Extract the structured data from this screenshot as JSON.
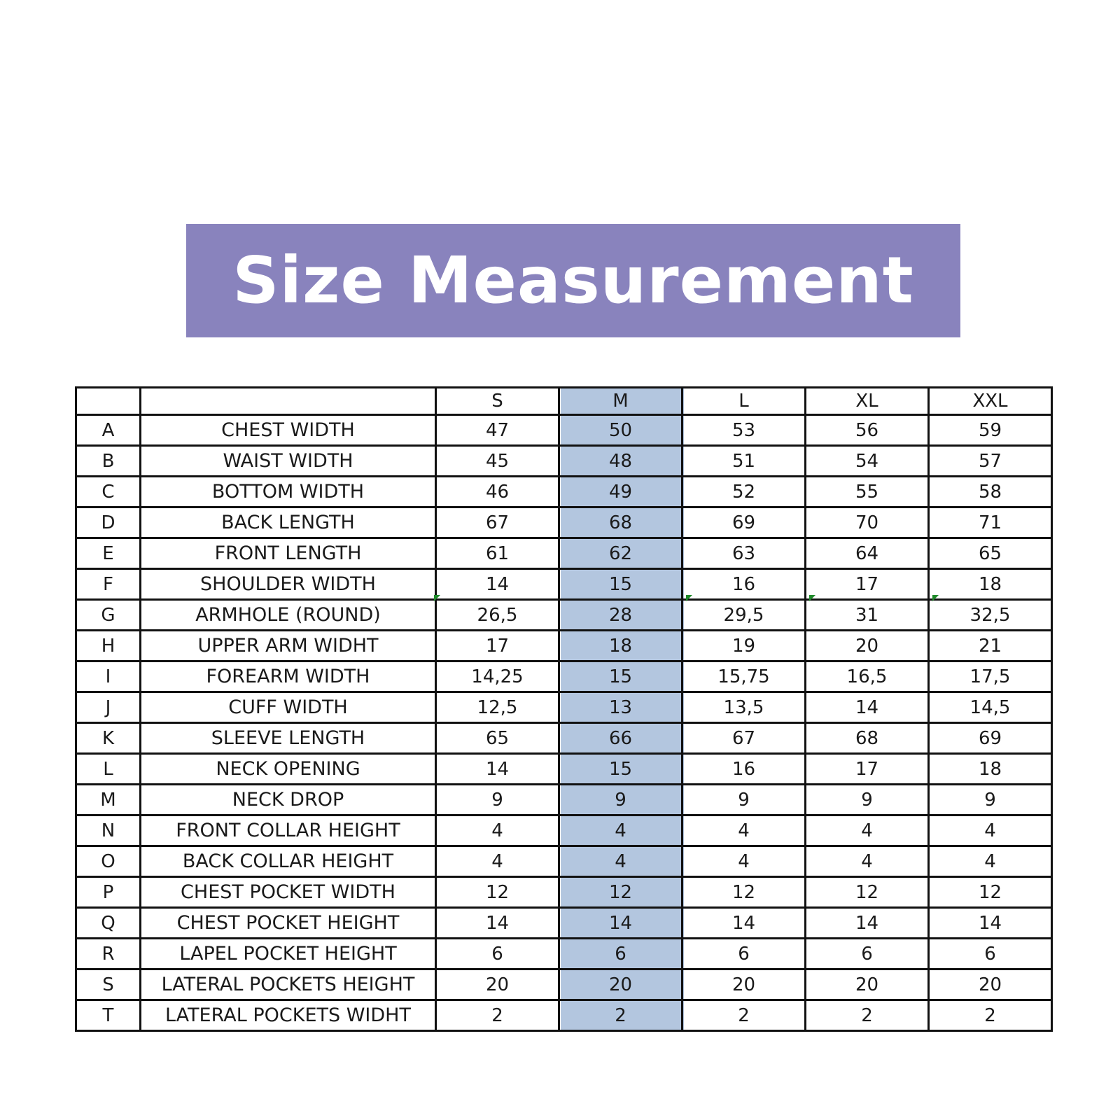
{
  "title": "Size Measurement",
  "colors": {
    "banner_background": "#8983bd",
    "banner_text": "#ffffff",
    "highlight_column": "#b3c6df",
    "comment_marker": "#1f8a2a"
  },
  "highlighted_size": "M",
  "table": {
    "sizes": [
      "S",
      "M",
      "L",
      "XL",
      "XXL"
    ],
    "rows": [
      {
        "code": "A",
        "name": "CHEST WIDTH",
        "values": [
          "47",
          "50",
          "53",
          "56",
          "59"
        ]
      },
      {
        "code": "B",
        "name": "WAIST WIDTH",
        "values": [
          "45",
          "48",
          "51",
          "54",
          "57"
        ]
      },
      {
        "code": "C",
        "name": "BOTTOM WIDTH",
        "values": [
          "46",
          "49",
          "52",
          "55",
          "58"
        ]
      },
      {
        "code": "D",
        "name": "BACK LENGTH",
        "values": [
          "67",
          "68",
          "69",
          "70",
          "71"
        ]
      },
      {
        "code": "E",
        "name": "FRONT LENGTH",
        "values": [
          "61",
          "62",
          "63",
          "64",
          "65"
        ]
      },
      {
        "code": "F",
        "name": "SHOULDER WIDTH",
        "values": [
          "14",
          "15",
          "16",
          "17",
          "18"
        ]
      },
      {
        "code": "G",
        "name": "ARMHOLE (ROUND)",
        "values": [
          "26,5",
          "28",
          "29,5",
          "31",
          "32,5"
        ]
      },
      {
        "code": "H",
        "name": "UPPER ARM WIDHT",
        "values": [
          "17",
          "18",
          "19",
          "20",
          "21"
        ]
      },
      {
        "code": "I",
        "name": "FOREARM WIDTH",
        "values": [
          "14,25",
          "15",
          "15,75",
          "16,5",
          "17,5"
        ]
      },
      {
        "code": "J",
        "name": "CUFF WIDTH",
        "values": [
          "12,5",
          "13",
          "13,5",
          "14",
          "14,5"
        ]
      },
      {
        "code": "K",
        "name": "SLEEVE LENGTH",
        "values": [
          "65",
          "66",
          "67",
          "68",
          "69"
        ]
      },
      {
        "code": "L",
        "name": "NECK OPENING",
        "values": [
          "14",
          "15",
          "16",
          "17",
          "18"
        ]
      },
      {
        "code": "M",
        "name": "NECK DROP",
        "values": [
          "9",
          "9",
          "9",
          "9",
          "9"
        ]
      },
      {
        "code": "N",
        "name": "FRONT COLLAR HEIGHT",
        "values": [
          "4",
          "4",
          "4",
          "4",
          "4"
        ]
      },
      {
        "code": "O",
        "name": "BACK COLLAR HEIGHT",
        "values": [
          "4",
          "4",
          "4",
          "4",
          "4"
        ]
      },
      {
        "code": "P",
        "name": "CHEST POCKET WIDTH",
        "values": [
          "12",
          "12",
          "12",
          "12",
          "12"
        ]
      },
      {
        "code": "Q",
        "name": "CHEST POCKET HEIGHT",
        "values": [
          "14",
          "14",
          "14",
          "14",
          "14"
        ]
      },
      {
        "code": "R",
        "name": "LAPEL  POCKET HEIGHT",
        "values": [
          "6",
          "6",
          "6",
          "6",
          "6"
        ]
      },
      {
        "code": "S",
        "name": "LATERAL POCKETS HEIGHT",
        "values": [
          "20",
          "20",
          "20",
          "20",
          "20"
        ]
      },
      {
        "code": "T",
        "name": "LATERAL POCKETS WIDHT",
        "values": [
          "2",
          "2",
          "2",
          "2",
          "2"
        ]
      }
    ]
  }
}
